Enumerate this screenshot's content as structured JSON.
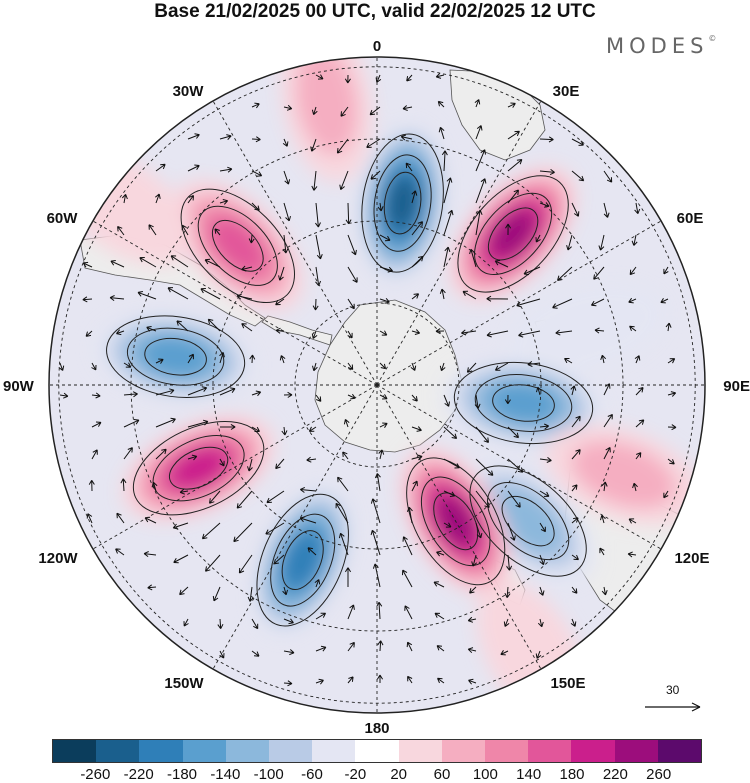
{
  "title": "Base 21/02/2025 00 UTC, valid 22/02/2025 12 UTC",
  "brand": "MODES",
  "brand_mark": "©",
  "map_labels": {
    "top": "0",
    "bottom": "180",
    "left": "90W",
    "right": "90E",
    "w30": "30W",
    "e30": "30E",
    "w60": "60W",
    "e60": "60E",
    "w120": "120W",
    "e120": "120E",
    "w150": "150W",
    "e150": "150E"
  },
  "reference_vector": {
    "label": "30"
  },
  "colorbar": {
    "colors": [
      "#0b3d5c",
      "#1a5f8d",
      "#2f7fb8",
      "#5a9fcf",
      "#8cb8dc",
      "#b9cbe6",
      "#e4e6f3",
      "#ffffff",
      "#f8d7de",
      "#f5aec1",
      "#ef86a9",
      "#e2569a",
      "#cb1f8c",
      "#9c0d7c",
      "#5c0a6c"
    ],
    "ticks": [
      "-260",
      "-220",
      "-180",
      "-140",
      "-100",
      "-60",
      "-20",
      "20",
      "60",
      "100",
      "140",
      "180",
      "220",
      "260"
    ]
  },
  "anomalies": [
    {
      "lon": 8,
      "r": 0.56,
      "value": -240
    },
    {
      "lon": 42,
      "r": 0.62,
      "value": 240
    },
    {
      "lon": 75,
      "r": 0.66,
      "value": -60
    },
    {
      "lon": 97,
      "r": 0.45,
      "value": -160
    },
    {
      "lon": 110,
      "r": 0.8,
      "value": 100
    },
    {
      "lon": 132,
      "r": 0.62,
      "value": -140
    },
    {
      "lon": 150,
      "r": 0.48,
      "value": 240
    },
    {
      "lon": 150,
      "r": 0.95,
      "value": 60
    },
    {
      "lon": 203,
      "r": 0.58,
      "value": -220
    },
    {
      "lon": 245,
      "r": 0.6,
      "value": 200
    },
    {
      "lon": 278,
      "r": 0.62,
      "value": -180
    },
    {
      "lon": 315,
      "r": 0.6,
      "value": 180
    },
    {
      "lon": 305,
      "r": 0.95,
      "value": 60
    },
    {
      "lon": 350,
      "r": 0.88,
      "value": 80
    }
  ]
}
